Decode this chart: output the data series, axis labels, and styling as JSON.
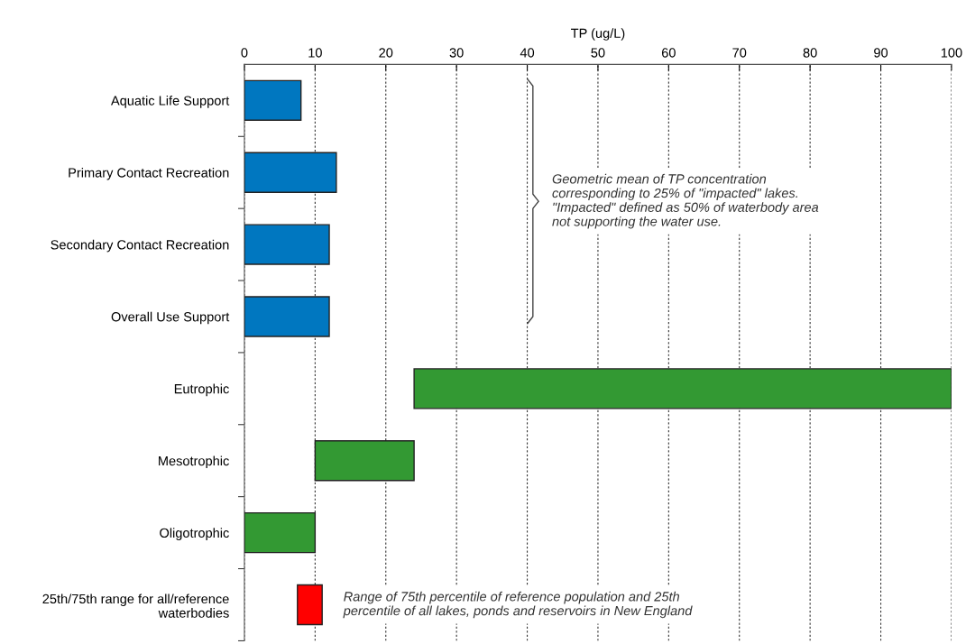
{
  "chart_data": {
    "type": "bar",
    "orientation": "horizontal",
    "xlabel": "TP (ug/L)",
    "categories": [
      "Aquatic Life Support",
      "Primary Contact Recreation",
      "Secondary Contact Recreation",
      "Overall Use Support",
      "Eutrophic",
      "Mesotrophic",
      "Oligotrophic",
      "25th/75th range for all/reference\nwaterbodies"
    ],
    "base": [
      0,
      0,
      0,
      0,
      24,
      10,
      0,
      7.5
    ],
    "values": [
      8,
      13,
      12,
      12,
      76,
      14,
      10,
      3.5
    ],
    "colors": [
      "#0077c0",
      "#0077c0",
      "#0077c0",
      "#0077c0",
      "#339933",
      "#339933",
      "#339933",
      "#ff0000"
    ],
    "xlim": [
      0,
      100
    ],
    "xticks": [
      0,
      10,
      20,
      30,
      40,
      50,
      60,
      70,
      80,
      90,
      100
    ],
    "grid": "x",
    "annotations": [
      "Geometric mean of TP concentration\ncorresponding to 25% of \"impacted\" lakes.\n\"Impacted\" defined as 50% of waterbody area\nnot supporting the water use.",
      "Range of 75th percentile of reference population and 25th\npercentile of all lakes, ponds and reservoirs in New England"
    ]
  }
}
